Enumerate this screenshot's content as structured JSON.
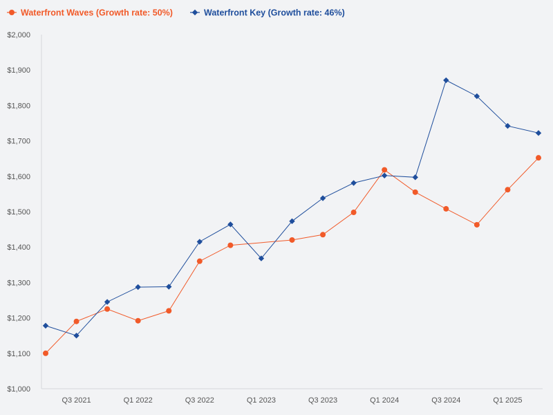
{
  "chart_data": {
    "type": "line",
    "title": "",
    "xlabel": "",
    "ylabel": "",
    "ylim": [
      1000,
      2000
    ],
    "yticks": [
      1000,
      1100,
      1200,
      1300,
      1400,
      1500,
      1600,
      1700,
      1800,
      1900,
      2000
    ],
    "ytick_labels": [
      "$1,000",
      "$1,100",
      "$1,200",
      "$1,300",
      "$1,400",
      "$1,500",
      "$1,600",
      "$1,700",
      "$1,800",
      "$1,900",
      "$2,000"
    ],
    "x": [
      "Q2 2021",
      "Q3 2021",
      "Q4 2021",
      "Q1 2022",
      "Q2 2022",
      "Q3 2022",
      "Q4 2022",
      "Q1 2023",
      "Q2 2023",
      "Q3 2023",
      "Q4 2023",
      "Q1 2024",
      "Q2 2024",
      "Q3 2024",
      "Q4 2024",
      "Q1 2025",
      "Q2 2025"
    ],
    "xtick_labels": [
      "Q3 2021",
      "Q1 2022",
      "Q3 2022",
      "Q1 2023",
      "Q3 2023",
      "Q1 2024",
      "Q3 2024",
      "Q1 2025"
    ],
    "xtick_indices": [
      1,
      3,
      5,
      7,
      9,
      11,
      13,
      15
    ],
    "legend_position": "top-left",
    "series": [
      {
        "name": "Waterfront Waves (Growth rate: 50%)",
        "color": "#f15a29",
        "marker": "circle",
        "values": [
          1100,
          1190,
          1225,
          1192,
          1220,
          1360,
          1405,
          null,
          1420,
          1435,
          1498,
          1618,
          1555,
          1508,
          1463,
          1562,
          1652
        ]
      },
      {
        "name": "Waterfront Key (Growth rate: 46%)",
        "color": "#1f4e9c",
        "marker": "diamond",
        "values": [
          1178,
          1150,
          1245,
          1287,
          1288,
          1415,
          1464,
          1368,
          1473,
          1538,
          1581,
          1602,
          1597,
          1871,
          1826,
          1742,
          1722
        ]
      }
    ]
  }
}
